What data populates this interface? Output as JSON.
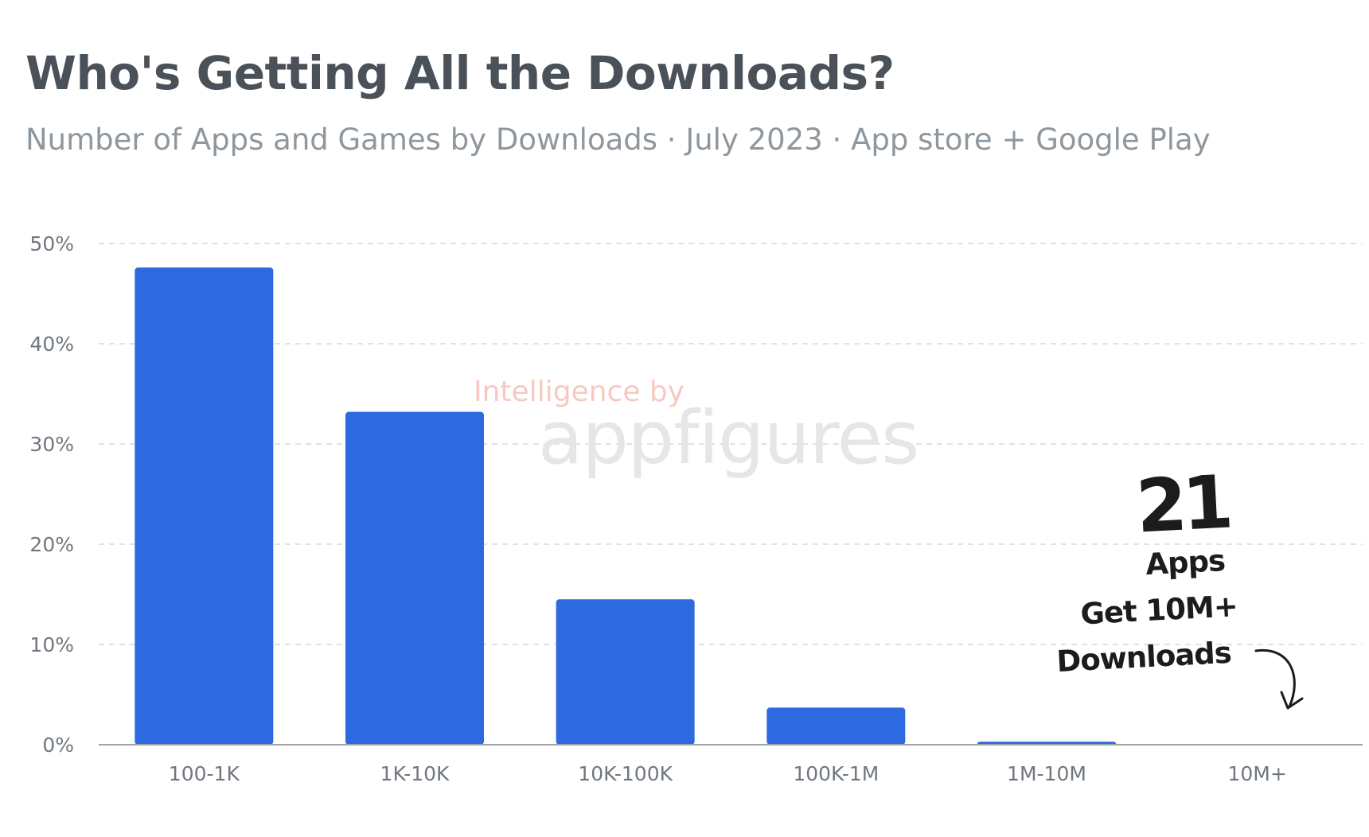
{
  "title": "Who's Getting All the Downloads?",
  "subtitle": "Number of Apps and Games by Downloads · July 2023 · App store + Google Play",
  "watermark": {
    "line1": "Intelligence by",
    "line2": "appfigures"
  },
  "callout": {
    "number": "21",
    "line1": "Apps",
    "line2": "Get 10M+",
    "line3": "Downloads"
  },
  "colors": {
    "bar": "#2d6ae0",
    "grid": "#d5d8db",
    "axis": "#9ea4a9"
  },
  "chart_data": {
    "type": "bar",
    "categories": [
      "100-1K",
      "1K-10K",
      "10K-100K",
      "100K-1M",
      "1M-10M",
      "10M+"
    ],
    "values": [
      47.6,
      33.2,
      14.5,
      3.7,
      0.3,
      0.0
    ],
    "yticks": [
      "0%",
      "10%",
      "20%",
      "30%",
      "40%",
      "50%"
    ],
    "ylim": [
      0,
      50
    ],
    "unit": "%",
    "grid": true
  }
}
